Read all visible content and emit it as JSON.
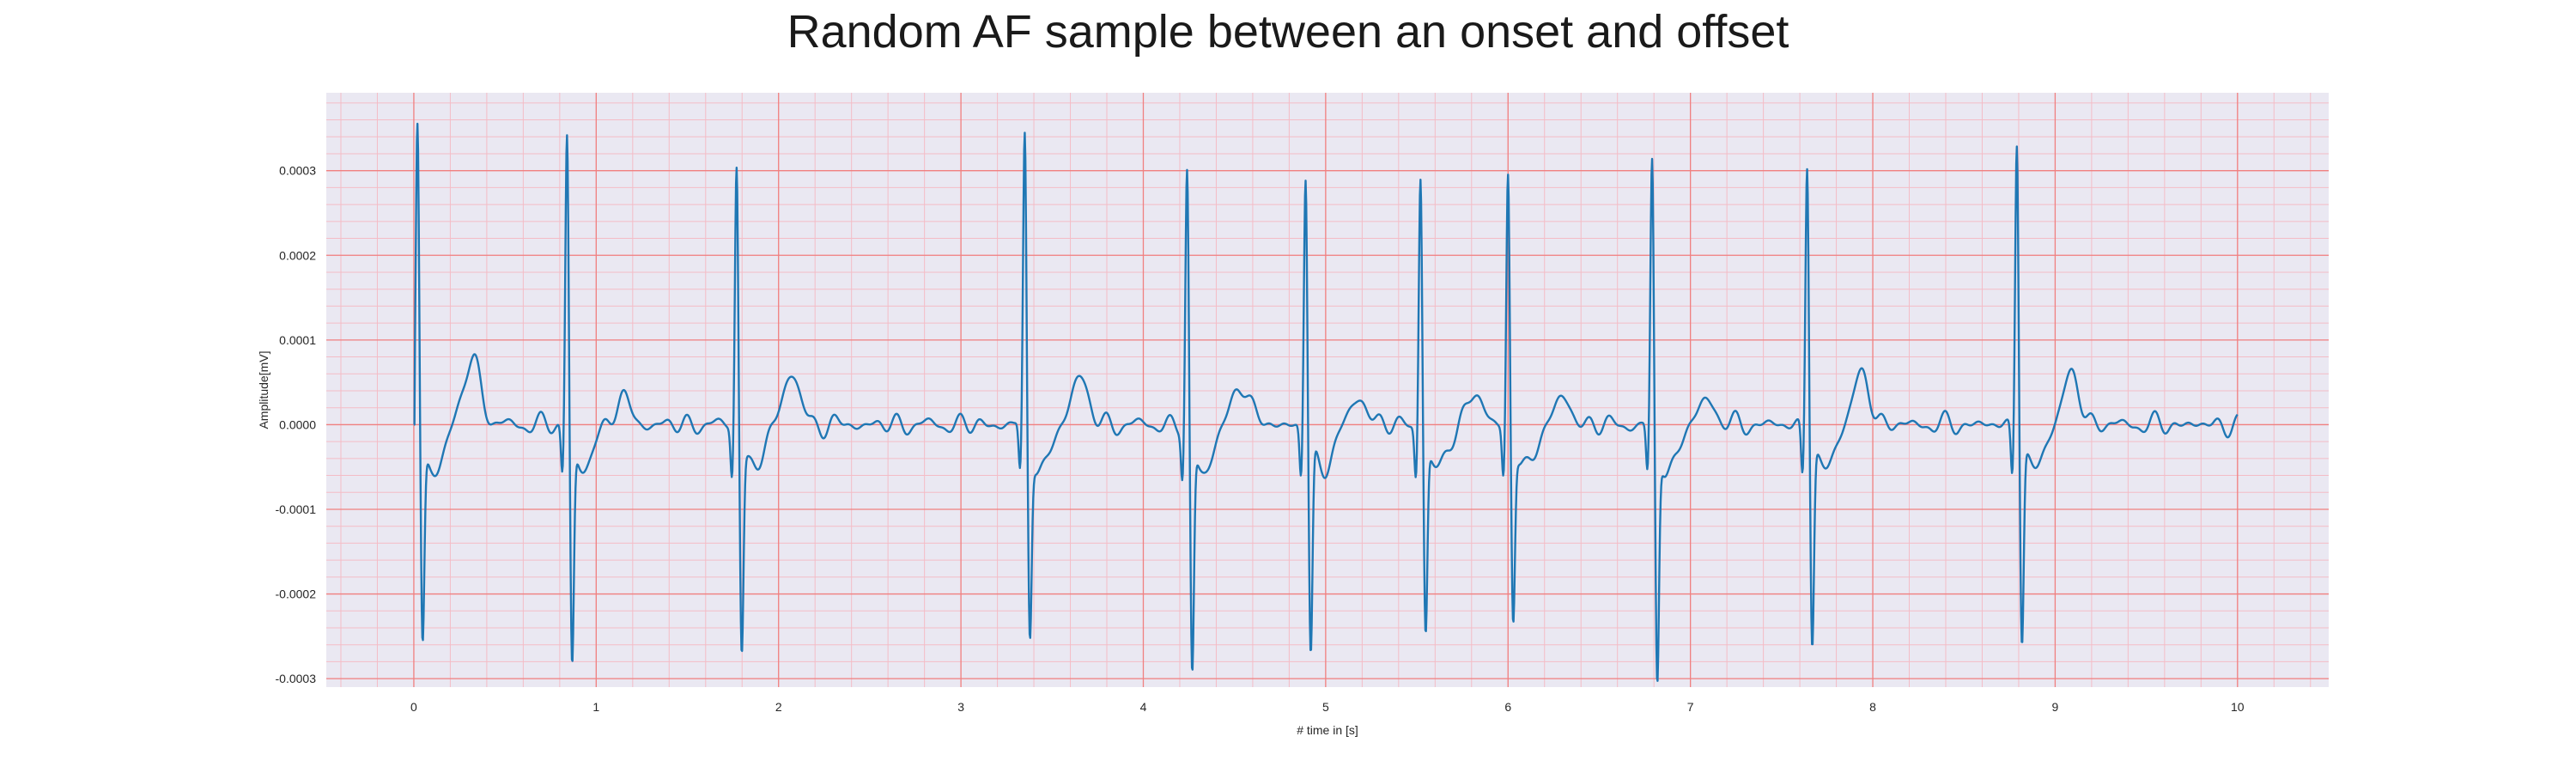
{
  "chart_data": {
    "type": "line",
    "title": "Random AF sample between an onset and offset",
    "xlabel": "# time in [s]",
    "ylabel": "Amplitude[mV]",
    "xlim": [
      -0.48,
      10.5
    ],
    "ylim": [
      -0.00031,
      0.000392
    ],
    "x_ticks": [
      0,
      1,
      2,
      3,
      4,
      5,
      6,
      7,
      8,
      9,
      10
    ],
    "y_ticks": [
      -0.0003,
      -0.0002,
      -0.0001,
      0.0,
      0.0001,
      0.0002,
      0.0003
    ],
    "y_tick_labels": [
      "-0.0003",
      "-0.0002",
      "-0.0001",
      "0.0000",
      "0.0001",
      "0.0002",
      "0.0003"
    ],
    "grid": "major and minor",
    "colors": {
      "line": "#1f77b4",
      "background": "#eae8f2",
      "major_grid": "#f08080",
      "minor_grid": "#f4bcc6"
    },
    "series": [
      {
        "beats": [
          {
            "t": 0.02,
            "r": 0.00036,
            "s": -0.000235,
            "tw": 8e-05
          },
          {
            "t": 0.84,
            "r": 0.000358,
            "s": -0.00026,
            "tw": 3e-05
          },
          {
            "t": 1.77,
            "r": 0.000325,
            "s": -0.00024,
            "tw": 6e-05
          },
          {
            "t": 3.35,
            "r": 0.000353,
            "s": -0.00022,
            "tw": 5.8e-05
          },
          {
            "t": 4.24,
            "r": 0.00031,
            "s": -0.000275,
            "tw": 5e-05
          },
          {
            "t": 4.89,
            "r": 0.00031,
            "s": -0.00025,
            "tw": 3e-05
          },
          {
            "t": 5.52,
            "r": 0.00031,
            "s": -0.000222,
            "tw": 3.5e-05
          },
          {
            "t": 6.0,
            "r": 0.00031,
            "s": -0.000205,
            "tw": 3e-05
          },
          {
            "t": 6.79,
            "r": 0.00032,
            "s": -0.00028,
            "tw": 3e-05
          },
          {
            "t": 7.64,
            "r": 0.000328,
            "s": -0.000235,
            "tw": 5.8e-05
          },
          {
            "t": 8.79,
            "r": 0.000356,
            "s": -0.000232,
            "tw": 5.8e-05
          }
        ],
        "t_start": 0.0,
        "t_end": 10.0,
        "baseline": 0.0
      }
    ]
  }
}
